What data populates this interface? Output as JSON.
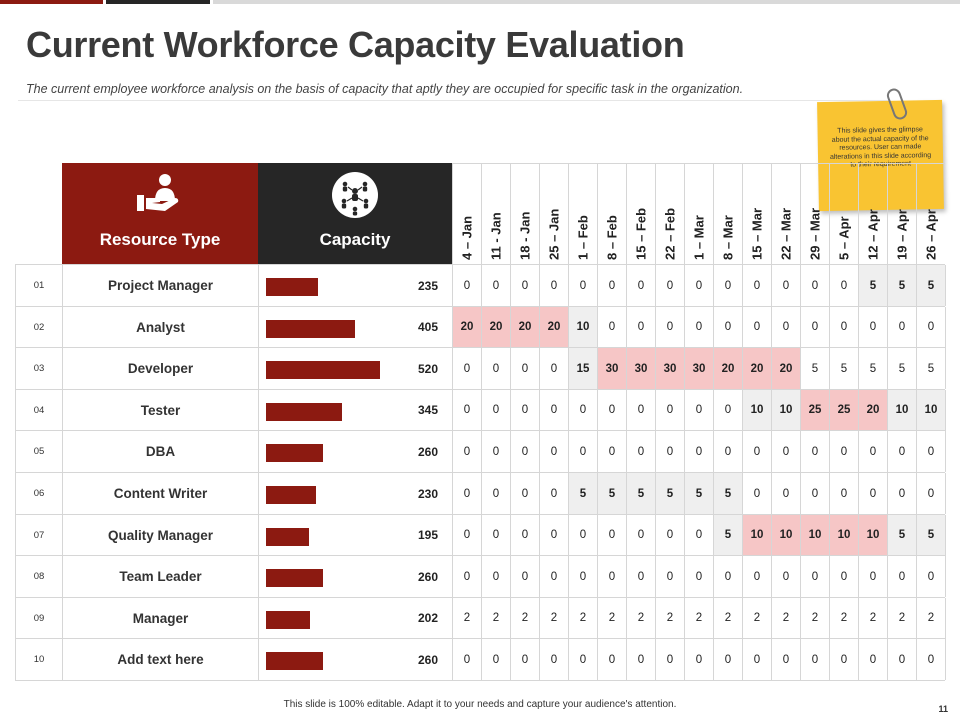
{
  "title": "Current Workforce Capacity Evaluation",
  "subtitle": "The current employee workforce analysis on the basis of capacity that aptly they are occupied for specific task in the organization.",
  "sticky_note": "This slide gives the glimpse about the actual capacity of the resources. User can made alterations in this slide according to their requirement",
  "colors": {
    "accent": "#8c1a11",
    "dark": "#262626",
    "highlight_grey": "#efefef",
    "highlight_pink": "#f6c6c6"
  },
  "header": {
    "resource_type": "Resource Type",
    "capacity": "Capacity",
    "resource_icon": "hand-with-person-icon",
    "capacity_icon": "team-network-icon"
  },
  "dates": [
    "4 – Jan",
    "11 - Jan",
    "18 - Jan",
    "25 – Jan",
    "1 – Feb",
    "8 – Feb",
    "15 – Feb",
    "22 – Feb",
    "1 – Mar",
    "8 – Mar",
    "15 – Mar",
    "22 – Mar",
    "29 – Mar",
    "5 – Apr",
    "12 – Apr",
    "19 – Apr",
    "26 – Apr"
  ],
  "max_capacity": 520,
  "rows": [
    {
      "num": "01",
      "name": "Project Manager",
      "capacity": "235",
      "values": [
        "0",
        "0",
        "0",
        "0",
        "0",
        "0",
        "0",
        "0",
        "0",
        "0",
        "0",
        "0",
        "0",
        "0",
        "5",
        "5",
        "5"
      ],
      "hl": [
        "",
        "",
        "",
        "",
        "",
        "",
        "",
        "",
        "",
        "",
        "",
        "",
        "",
        "",
        "g",
        "g",
        "g"
      ]
    },
    {
      "num": "02",
      "name": "Analyst",
      "capacity": "405",
      "values": [
        "20",
        "20",
        "20",
        "20",
        "10",
        "0",
        "0",
        "0",
        "0",
        "0",
        "0",
        "0",
        "0",
        "0",
        "0",
        "0",
        "0"
      ],
      "hl": [
        "p",
        "p",
        "p",
        "p",
        "g",
        "",
        "",
        "",
        "",
        "",
        "",
        "",
        "",
        "",
        "",
        "",
        ""
      ]
    },
    {
      "num": "03",
      "name": "Developer",
      "capacity": "520",
      "values": [
        "0",
        "0",
        "0",
        "0",
        "15",
        "30",
        "30",
        "30",
        "30",
        "20",
        "20",
        "20",
        "5",
        "5",
        "5",
        "5",
        "5"
      ],
      "hl": [
        "",
        "",
        "",
        "",
        "g",
        "p",
        "p",
        "p",
        "p",
        "p",
        "p",
        "p",
        "",
        "",
        "",
        "",
        ""
      ]
    },
    {
      "num": "04",
      "name": "Tester",
      "capacity": "345",
      "values": [
        "0",
        "0",
        "0",
        "0",
        "0",
        "0",
        "0",
        "0",
        "0",
        "0",
        "10",
        "10",
        "25",
        "25",
        "20",
        "10",
        "10"
      ],
      "hl": [
        "",
        "",
        "",
        "",
        "",
        "",
        "",
        "",
        "",
        "",
        "g",
        "g",
        "p",
        "p",
        "p",
        "g",
        "g"
      ]
    },
    {
      "num": "05",
      "name": "DBA",
      "capacity": "260",
      "values": [
        "0",
        "0",
        "0",
        "0",
        "0",
        "0",
        "0",
        "0",
        "0",
        "0",
        "0",
        "0",
        "0",
        "0",
        "0",
        "0",
        "0"
      ],
      "hl": [
        "",
        "",
        "",
        "",
        "",
        "",
        "",
        "",
        "",
        "",
        "",
        "",
        "",
        "",
        "",
        "",
        ""
      ]
    },
    {
      "num": "06",
      "name": "Content Writer",
      "capacity": "230",
      "values": [
        "0",
        "0",
        "0",
        "0",
        "5",
        "5",
        "5",
        "5",
        "5",
        "5",
        "0",
        "0",
        "0",
        "0",
        "0",
        "0",
        "0"
      ],
      "hl": [
        "",
        "",
        "",
        "",
        "g",
        "g",
        "g",
        "g",
        "g",
        "g",
        "",
        "",
        "",
        "",
        "",
        "",
        ""
      ]
    },
    {
      "num": "07",
      "name": "Quality Manager",
      "capacity": "195",
      "values": [
        "0",
        "0",
        "0",
        "0",
        "0",
        "0",
        "0",
        "0",
        "0",
        "5",
        "10",
        "10",
        "10",
        "10",
        "10",
        "5",
        "5"
      ],
      "hl": [
        "",
        "",
        "",
        "",
        "",
        "",
        "",
        "",
        "",
        "g",
        "p",
        "p",
        "p",
        "p",
        "p",
        "g",
        "g"
      ]
    },
    {
      "num": "08",
      "name": "Team Leader",
      "capacity": "260",
      "values": [
        "0",
        "0",
        "0",
        "0",
        "0",
        "0",
        "0",
        "0",
        "0",
        "0",
        "0",
        "0",
        "0",
        "0",
        "0",
        "0",
        "0"
      ],
      "hl": [
        "",
        "",
        "",
        "",
        "",
        "",
        "",
        "",
        "",
        "",
        "",
        "",
        "",
        "",
        "",
        "",
        ""
      ]
    },
    {
      "num": "09",
      "name": "Manager",
      "capacity": "202",
      "values": [
        "2",
        "2",
        "2",
        "2",
        "2",
        "2",
        "2",
        "2",
        "2",
        "2",
        "2",
        "2",
        "2",
        "2",
        "2",
        "2",
        "2"
      ],
      "hl": [
        "",
        "",
        "",
        "",
        "",
        "",
        "",
        "",
        "",
        "",
        "",
        "",
        "",
        "",
        "",
        "",
        ""
      ]
    },
    {
      "num": "10",
      "name": "Add text here",
      "capacity": "260",
      "values": [
        "0",
        "0",
        "0",
        "0",
        "0",
        "0",
        "0",
        "0",
        "0",
        "0",
        "0",
        "0",
        "0",
        "0",
        "0",
        "0",
        "0"
      ],
      "hl": [
        "",
        "",
        "",
        "",
        "",
        "",
        "",
        "",
        "",
        "",
        "",
        "",
        "",
        "",
        "",
        "",
        ""
      ]
    }
  ],
  "footer": "This slide is 100% editable. Adapt it to your needs and capture your audience's attention.",
  "page_number": "11"
}
